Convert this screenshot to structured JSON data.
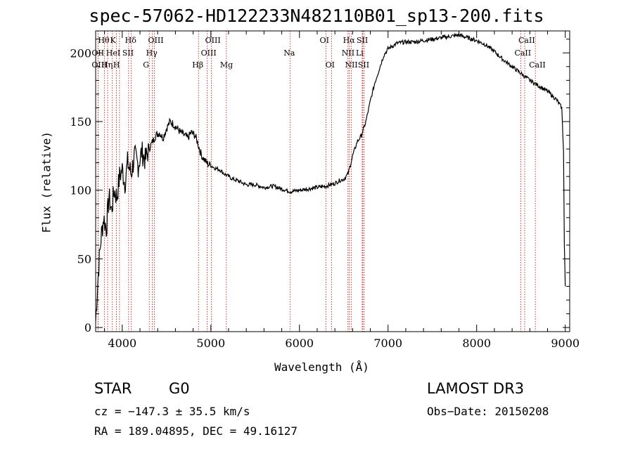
{
  "chart_data": {
    "type": "line",
    "title": "spec-57062-HD122233N482110B01_sp13-200.fits",
    "xlabel": "Wavelength (Å)",
    "ylabel": "Flux (relative)",
    "xlim": [
      3700,
      9050
    ],
    "ylim": [
      -3,
      216
    ],
    "xticks": [
      4000,
      5000,
      6000,
      7000,
      8000,
      9000
    ],
    "yticks": [
      0,
      50,
      100,
      150,
      200
    ],
    "series": [
      {
        "name": "flux",
        "x": [
          3700,
          3730,
          3760,
          3790,
          3820,
          3850,
          3880,
          3910,
          3940,
          3970,
          4000,
          4030,
          4060,
          4100,
          4140,
          4180,
          4220,
          4260,
          4300,
          4340,
          4380,
          4420,
          4460,
          4500,
          4540,
          4580,
          4620,
          4660,
          4700,
          4740,
          4780,
          4820,
          4850,
          4880,
          4900,
          4950,
          5000,
          5050,
          5100,
          5150,
          5200,
          5250,
          5300,
          5400,
          5500,
          5600,
          5700,
          5800,
          5900,
          6000,
          6100,
          6200,
          6300,
          6400,
          6450,
          6500,
          6550,
          6600,
          6650,
          6700,
          6750,
          6800,
          6850,
          6900,
          6950,
          7000,
          7050,
          7100,
          7200,
          7300,
          7400,
          7500,
          7600,
          7700,
          7800,
          7900,
          8000,
          8100,
          8200,
          8300,
          8400,
          8500,
          8600,
          8700,
          8800,
          8900,
          8960,
          8980,
          8990,
          9000
        ],
        "y": [
          5,
          40,
          65,
          80,
          72,
          95,
          85,
          100,
          95,
          110,
          115,
          105,
          120,
          112,
          125,
          118,
          128,
          122,
          130,
          135,
          140,
          142,
          138,
          145,
          150,
          148,
          145,
          142,
          140,
          138,
          142,
          140,
          135,
          128,
          125,
          120,
          118,
          116,
          115,
          112,
          110,
          108,
          107,
          104,
          104,
          102,
          103,
          101,
          99,
          100,
          101,
          102,
          103,
          105,
          107,
          108,
          112,
          125,
          135,
          140,
          150,
          165,
          178,
          188,
          198,
          203,
          205,
          207,
          208,
          208,
          209,
          210,
          211,
          212,
          213,
          211,
          209,
          206,
          201,
          195,
          190,
          185,
          180,
          176,
          172,
          166,
          160,
          130,
          60,
          30
        ]
      }
    ],
    "spectral_lines": [
      {
        "label": "Hθ",
        "wavelength": 3798,
        "row": 1
      },
      {
        "label": "OII",
        "wavelength": 3727,
        "row": 2
      },
      {
        "label": "OIII",
        "wavelength": 3727,
        "row": 3
      },
      {
        "label": "K",
        "wavelength": 3934,
        "row": 1
      },
      {
        "label": "H",
        "wavelength": 3969,
        "row": 3
      },
      {
        "label": "Hη",
        "wavelength": 3835,
        "row": 3
      },
      {
        "label": "HeI",
        "wavelength": 3889,
        "row": 2
      },
      {
        "label": "SII",
        "wavelength": 4072,
        "row": 2
      },
      {
        "label": "Hδ",
        "wavelength": 4102,
        "row": 1
      },
      {
        "label": "OIII",
        "wavelength": 4363,
        "row": 1
      },
      {
        "label": "Hγ",
        "wavelength": 4340,
        "row": 2
      },
      {
        "label": "G",
        "wavelength": 4305,
        "row": 3
      },
      {
        "label": "OIII",
        "wavelength": 5007,
        "row": 1
      },
      {
        "label": "OIII",
        "wavelength": 4959,
        "row": 2
      },
      {
        "label": "Hβ",
        "wavelength": 4861,
        "row": 3
      },
      {
        "label": "Mg",
        "wavelength": 5175,
        "row": 3
      },
      {
        "label": "Na",
        "wavelength": 5893,
        "row": 2
      },
      {
        "label": "OI",
        "wavelength": 6300,
        "row": 1
      },
      {
        "label": "OI",
        "wavelength": 6364,
        "row": 3
      },
      {
        "label": "Hα",
        "wavelength": 6563,
        "row": 1
      },
      {
        "label": "SII",
        "wavelength": 6716,
        "row": 1
      },
      {
        "label": "NII",
        "wavelength": 6548,
        "row": 2
      },
      {
        "label": "Li",
        "wavelength": 6708,
        "row": 2
      },
      {
        "label": "NII",
        "wavelength": 6584,
        "row": 3
      },
      {
        "label": "SII",
        "wavelength": 6731,
        "row": 3
      },
      {
        "label": "CaII",
        "wavelength": 8542,
        "row": 1
      },
      {
        "label": "CaII",
        "wavelength": 8498,
        "row": 2
      },
      {
        "label": "CaII",
        "wavelength": 8662,
        "row": 3
      }
    ]
  },
  "info": {
    "object_class": "STAR",
    "subclass": "G0",
    "survey": "LAMOST DR3",
    "cz": "cz = −147.3 ± 35.5 km/s",
    "obs_date": "Obs−Date: 20150208",
    "coords": "RA = 189.04895, DEC =  49.16127"
  },
  "colors": {
    "line": "#000000",
    "marker": "#cc0000",
    "axes": "#000000"
  }
}
